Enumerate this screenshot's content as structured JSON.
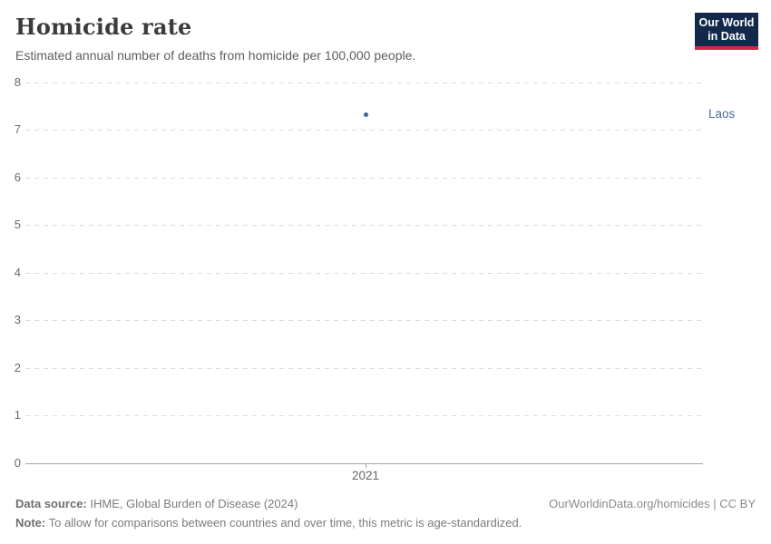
{
  "header": {
    "title": "Homicide rate",
    "subtitle": "Estimated annual number of deaths from homicide per 100,000 people."
  },
  "logo": {
    "line1": "Our World",
    "line2": "in Data",
    "background_color": "#12294b",
    "accent_color": "#ce2943"
  },
  "chart_data": {
    "type": "scatter",
    "title": "Homicide rate",
    "subtitle": "Estimated annual number of deaths from homicide per 100,000 people.",
    "series": [
      {
        "name": "Laos",
        "x": [
          2021
        ],
        "values": [
          7.33
        ]
      }
    ],
    "xtick_labels": [
      "2021"
    ],
    "ytick_labels_top_to_bottom": [
      "8",
      "7",
      "6",
      "5",
      "4",
      "3",
      "2",
      "1",
      "0"
    ],
    "ylim": [
      0,
      8
    ],
    "xlabel": "",
    "ylabel": "",
    "grid": "horizontal dashed gridlines, solid baseline at 0",
    "legend_position": "entity label right of plot",
    "point_color": "#3d6a9e",
    "entity_label_color": "#4c6a9c"
  },
  "footer": {
    "source_label": "Data source:",
    "source_text": " IHME, Global Burden of Disease (2024)",
    "note_label": "Note:",
    "note_text": " To allow for comparisons between countries and over time, this metric is age-standardized.",
    "link": "OurWorldinData.org/homicides | CC BY"
  }
}
